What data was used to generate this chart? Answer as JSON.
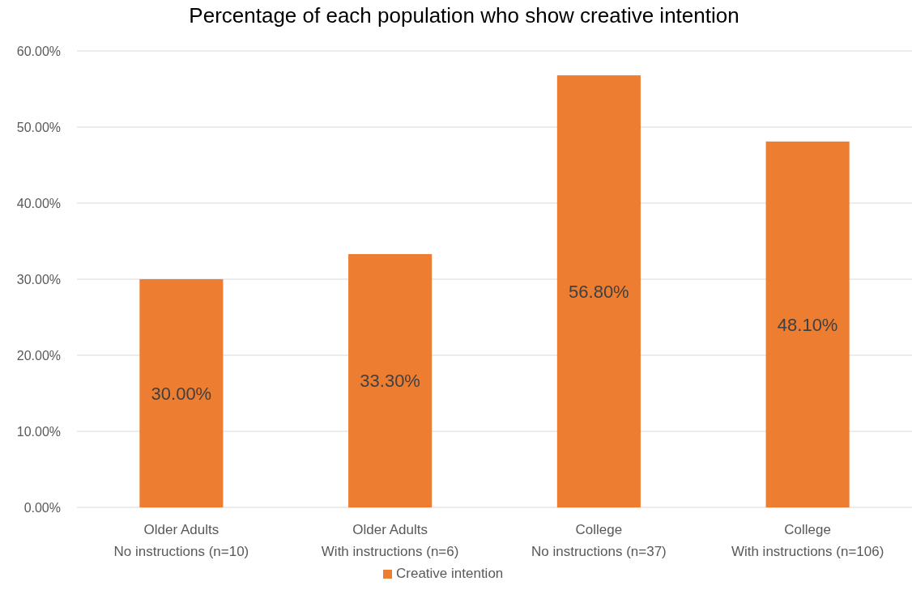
{
  "chart_data": {
    "type": "bar",
    "title": "Percentage of each population who show creative intention",
    "categories": [
      "Older Adults\nNo instructions (n=10)",
      "Older Adults\nWith instructions (n=6)",
      "College\nNo instructions (n=37)",
      "College\nWith instructions (n=106)"
    ],
    "series": [
      {
        "name": "Creative intention",
        "color": "#ed7d31",
        "values": [
          30,
          33.3,
          56.8,
          48.1
        ],
        "value_labels": [
          "30.00%",
          "33.30%",
          "56.80%",
          "48.10%"
        ]
      }
    ],
    "ylim": [
      0,
      60
    ],
    "yticks": [
      {
        "value": 0,
        "label": "0.00%"
      },
      {
        "value": 10,
        "label": "10.00%"
      },
      {
        "value": 20,
        "label": "20.00%"
      },
      {
        "value": 30,
        "label": "30.00%"
      },
      {
        "value": 40,
        "label": "40.00%"
      },
      {
        "value": 50,
        "label": "50.00%"
      },
      {
        "value": 60,
        "label": "60.00%"
      }
    ],
    "grid": "y",
    "legend": "bottom"
  }
}
